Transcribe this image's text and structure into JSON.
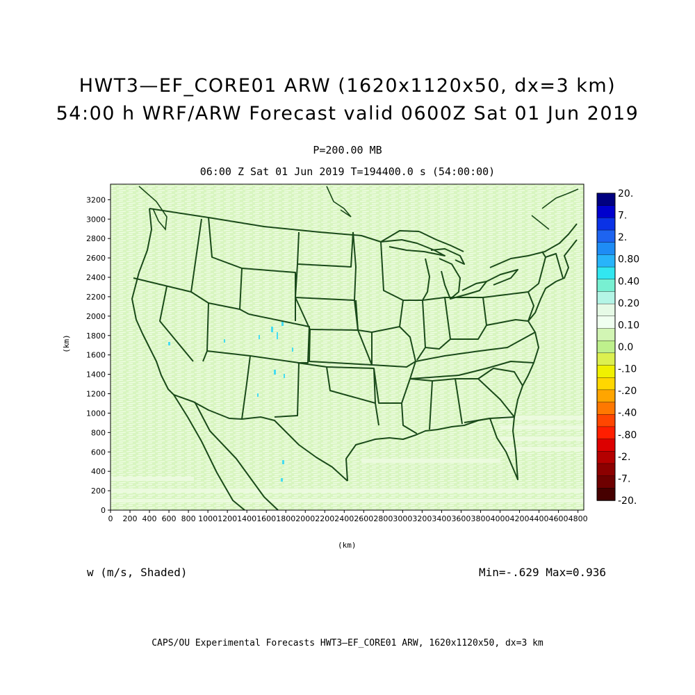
{
  "title": {
    "line1": "HWT3—EF_CORE01 ARW (1620x1120x50, dx=3 km)",
    "line2": "54:00 h WRF/ARW Forecast valid 0600Z Sat 01 Jun 2019"
  },
  "subtitle": {
    "level": "P=200.00 MB",
    "valid": "06:00 Z Sat 01 Jun 2019    T=194400.0 s (54:00:00)"
  },
  "variable_label": "w (m/s, Shaded)",
  "min_max": "Min=-.629 Max=0.936",
  "footer": "CAPS/OU Experimental Forecasts  HWT3—EF_CORE01 ARW, 1620x1120x50, dx=3 km",
  "axes": {
    "xlabel": "(km)",
    "ylabel": "(km)",
    "xlim": [
      0,
      4860
    ],
    "ylim": [
      0,
      3360
    ],
    "xticks": [
      0,
      200,
      400,
      600,
      800,
      1000,
      1200,
      1400,
      1600,
      1800,
      2000,
      2200,
      2400,
      2600,
      2800,
      3000,
      3200,
      3400,
      3600,
      3800,
      4000,
      4200,
      4400,
      4600,
      4800
    ],
    "yticks": [
      0,
      200,
      400,
      600,
      800,
      1000,
      1200,
      1400,
      1600,
      1800,
      2000,
      2200,
      2400,
      2600,
      2800,
      3000,
      3200
    ]
  },
  "colorbar": {
    "labels": [
      "20.",
      "7.",
      "2.",
      "0.80",
      "0.40",
      "0.20",
      "0.10",
      "0.0",
      "-.10",
      "-.20",
      "-.40",
      "-.80",
      "-2.",
      "-7.",
      "-20."
    ],
    "colors": [
      "#000080",
      "#0000cd",
      "#0a32e6",
      "#1e64f0",
      "#1e8cf5",
      "#28b4fa",
      "#32e6f0",
      "#78f0d2",
      "#b4f5e6",
      "#e6fae6",
      "#f0fff0",
      "#d2f5b4",
      "#bef08c",
      "#dcf050",
      "#f0f000",
      "#ffd700",
      "#ffa500",
      "#ff7800",
      "#ff4600",
      "#ff1e00",
      "#dc0000",
      "#b40000",
      "#8c0000",
      "#6e0000",
      "#460000"
    ]
  },
  "map": {
    "background_color": "#d8f5c0",
    "boundary_color": "#1a4a1a"
  }
}
